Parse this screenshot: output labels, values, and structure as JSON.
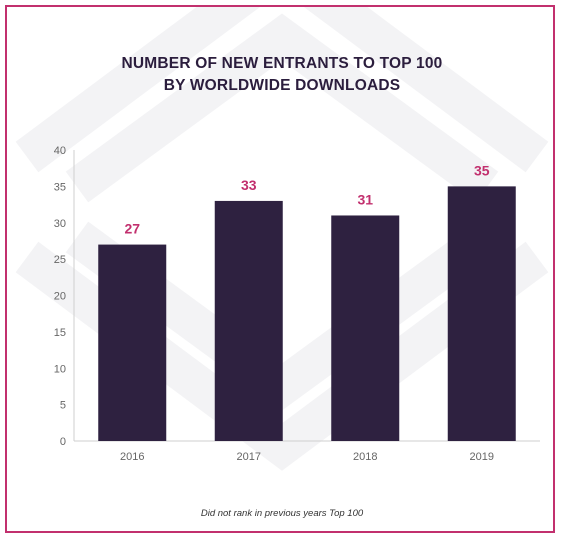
{
  "colors": {
    "border": "#c2306e",
    "bar": "#2e2140",
    "value_label": "#c2306e",
    "title": "#2b1d3d",
    "axis_text": "#666666",
    "watermark": "#f3f3f5"
  },
  "chart_data": {
    "type": "bar",
    "title": "NUMBER OF NEW ENTRANTS TO TOP 100 BY WORLDWIDE DOWNLOADS",
    "title_lines": [
      "NUMBER OF NEW ENTRANTS TO TOP 100",
      "BY WORLDWIDE DOWNLOADS"
    ],
    "categories": [
      "2016",
      "2017",
      "2018",
      "2019"
    ],
    "values": [
      27,
      33,
      31,
      35
    ],
    "data_labels": [
      "27",
      "33",
      "31",
      "35"
    ],
    "xlabel": "",
    "ylabel": "",
    "ylim": [
      0,
      40
    ],
    "yticks": [
      "0",
      "5",
      "10",
      "15",
      "20",
      "25",
      "30",
      "35",
      "40"
    ],
    "grid": false,
    "footnote": "Did not rank in previous years Top 100"
  }
}
